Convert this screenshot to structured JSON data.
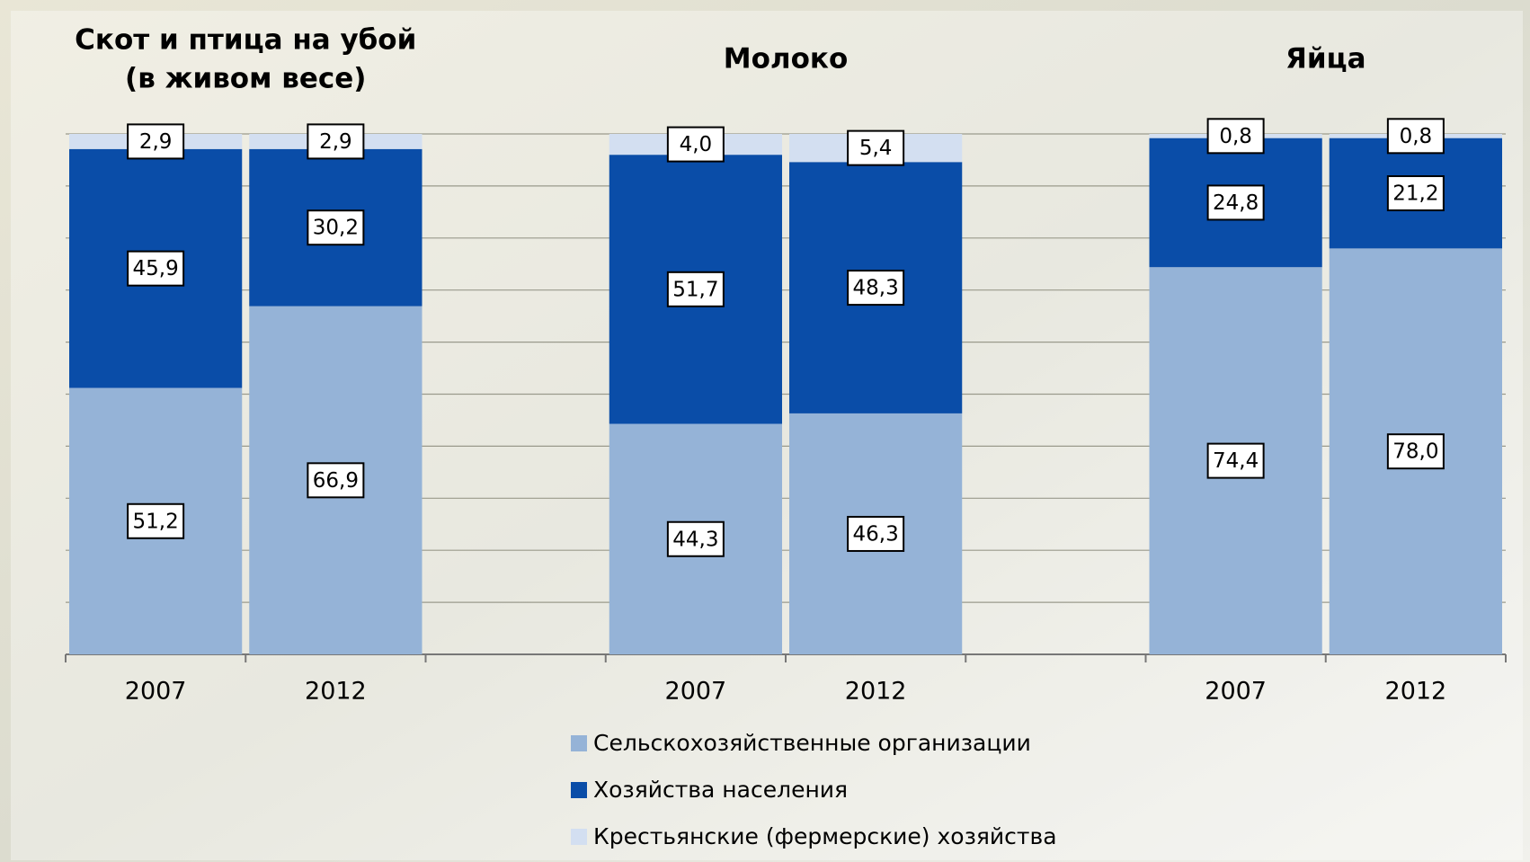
{
  "chart_data": {
    "type": "bar",
    "stacked": true,
    "titles": [
      [
        "Скот и птица на убой",
        "(в живом весе)"
      ],
      [
        "Молоко"
      ],
      [
        "Яйца"
      ]
    ],
    "categories": [
      "2007",
      "2012",
      null,
      "2007",
      "2012",
      null,
      "2007",
      "2012"
    ],
    "series": [
      {
        "name": "Сельскохозяйственные организации",
        "color": "#95b3d7",
        "values": [
          51.2,
          66.9,
          null,
          44.3,
          46.3,
          null,
          74.4,
          78.0
        ],
        "value_labels": [
          "51,2",
          "66,9",
          null,
          "44,3",
          "46,3",
          null,
          "74,4",
          "78,0"
        ]
      },
      {
        "name": "Хозяйства населения",
        "color": "#0a4da8",
        "values": [
          45.9,
          30.2,
          null,
          51.7,
          48.3,
          null,
          24.8,
          21.2
        ],
        "value_labels": [
          "45,9",
          "30,2",
          null,
          "51,7",
          "48,3",
          null,
          "24,8",
          "21,2"
        ]
      },
      {
        "name": "Крестьянские (фермерские) хозяйства",
        "color": "#d3dff1",
        "values": [
          2.9,
          2.9,
          null,
          4.0,
          5.4,
          null,
          0.8,
          0.8
        ],
        "value_labels": [
          "2,9",
          "2,9",
          null,
          "4,0",
          "5,4",
          null,
          "0,8",
          "0,8"
        ]
      }
    ],
    "ylim": [
      0,
      100
    ],
    "yticks": [
      0,
      10,
      20,
      30,
      40,
      50,
      60,
      70,
      80,
      90,
      100
    ],
    "grid": true
  }
}
